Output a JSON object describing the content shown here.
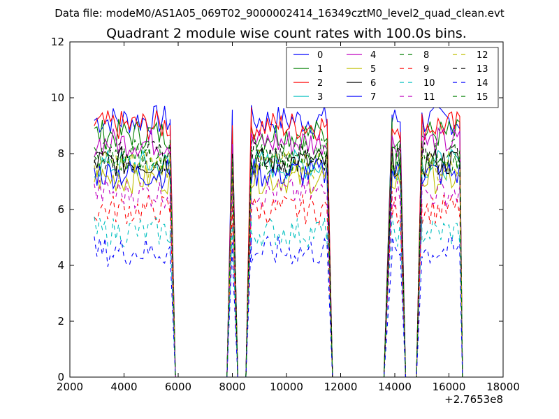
{
  "suptitle": "Data file: modeM0/AS1A05_069T02_9000002414_16349cztM0_level2_quad_clean.evt",
  "chart_data": {
    "type": "line",
    "title": "Quadrant 2 module wise count rates with 100.0s bins.",
    "xlabel": "",
    "ylabel": "",
    "x_offset_label": "+2.7653e8",
    "xlim": [
      2000,
      18000
    ],
    "ylim": [
      0,
      12
    ],
    "xticks": [
      "2000",
      "4000",
      "6000",
      "8000",
      "10000",
      "12000",
      "14000",
      "16000",
      "18000"
    ],
    "yticks": [
      "0",
      "2",
      "4",
      "6",
      "8",
      "10",
      "12"
    ],
    "grid": false,
    "legend_position": "top-right",
    "legend_columns": 4,
    "segments": [
      {
        "kind": "data",
        "x": [
          2900,
          5700
        ]
      },
      {
        "kind": "fall",
        "x": [
          5700,
          5900
        ]
      },
      {
        "kind": "gap",
        "x": [
          5900,
          7800
        ]
      },
      {
        "kind": "rise",
        "x": [
          7800,
          8000
        ]
      },
      {
        "kind": "fall",
        "x": [
          8000,
          8200
        ]
      },
      {
        "kind": "gap",
        "x": [
          8200,
          8500
        ]
      },
      {
        "kind": "rise",
        "x": [
          8500,
          8700
        ]
      },
      {
        "kind": "data",
        "x": [
          8700,
          11500
        ]
      },
      {
        "kind": "fall",
        "x": [
          11500,
          11700
        ]
      },
      {
        "kind": "gap",
        "x": [
          11700,
          13600
        ]
      },
      {
        "kind": "rise",
        "x": [
          13600,
          13900
        ]
      },
      {
        "kind": "data",
        "x": [
          13900,
          14200
        ]
      },
      {
        "kind": "fall",
        "x": [
          14200,
          14400
        ]
      },
      {
        "kind": "gap",
        "x": [
          14400,
          14800
        ]
      },
      {
        "kind": "rise",
        "x": [
          14800,
          15000
        ]
      },
      {
        "kind": "data",
        "x": [
          15000,
          16400
        ]
      },
      {
        "kind": "fall",
        "x": [
          16400,
          16500
        ]
      }
    ],
    "series": [
      {
        "name": "0",
        "color": "#0000ff",
        "dash": "solid",
        "level": 9.2
      },
      {
        "name": "1",
        "color": "#007f00",
        "dash": "solid",
        "level": 8.7
      },
      {
        "name": "2",
        "color": "#ff0000",
        "dash": "solid",
        "level": 9.0
      },
      {
        "name": "3",
        "color": "#00bfbf",
        "dash": "solid",
        "level": 7.6
      },
      {
        "name": "4",
        "color": "#bf00bf",
        "dash": "solid",
        "level": 8.4
      },
      {
        "name": "5",
        "color": "#bfbf00",
        "dash": "solid",
        "level": 7.1
      },
      {
        "name": "6",
        "color": "#000000",
        "dash": "solid",
        "level": 7.7
      },
      {
        "name": "7",
        "color": "#0000ff",
        "dash": "solid",
        "level": 7.3
      },
      {
        "name": "8",
        "color": "#007f00",
        "dash": "dashed",
        "level": 8.0
      },
      {
        "name": "9",
        "color": "#ff0000",
        "dash": "dashed",
        "level": 6.0
      },
      {
        "name": "10",
        "color": "#00bfbf",
        "dash": "dashed",
        "level": 5.2
      },
      {
        "name": "11",
        "color": "#bf00bf",
        "dash": "dashed",
        "level": 6.6
      },
      {
        "name": "12",
        "color": "#bfbf00",
        "dash": "dashed",
        "level": 7.6
      },
      {
        "name": "13",
        "color": "#000000",
        "dash": "dashed",
        "level": 7.9
      },
      {
        "name": "14",
        "color": "#0000ff",
        "dash": "dashed",
        "level": 4.5
      },
      {
        "name": "15",
        "color": "#007f00",
        "dash": "dashed",
        "level": 7.8
      }
    ]
  }
}
